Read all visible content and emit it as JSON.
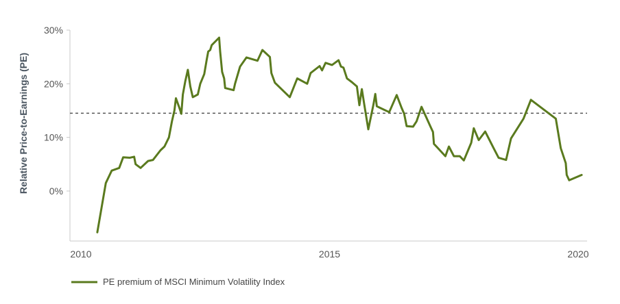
{
  "chart_data": {
    "type": "line",
    "title": "",
    "xlabel": "",
    "ylabel": "Relative Price-to-Earnings (PE)",
    "xlim": [
      2010,
      2020
    ],
    "ylim": [
      -10,
      30
    ],
    "x_ticks": [
      {
        "value": 2010,
        "label": "2010"
      },
      {
        "value": 2015,
        "label": "2015"
      },
      {
        "value": 2020,
        "label": "2020"
      }
    ],
    "y_ticks": [
      {
        "value": 30,
        "label": "30%"
      },
      {
        "value": 20,
        "label": "20%"
      },
      {
        "value": 10,
        "label": "10%"
      },
      {
        "value": 0,
        "label": "0%"
      }
    ],
    "grid": false,
    "legend_position": "bottom-left",
    "reference_line": {
      "y": 14.5,
      "style": "dashed",
      "color": "#555555"
    },
    "series": [
      {
        "name": "PE premium of MSCI Minimum Volatility Index",
        "color": "#5a7a1e",
        "points": [
          [
            2010.33,
            -7.7
          ],
          [
            2010.5,
            1.5
          ],
          [
            2010.62,
            3.8
          ],
          [
            2010.77,
            4.3
          ],
          [
            2010.85,
            6.3
          ],
          [
            2010.98,
            6.2
          ],
          [
            2011.07,
            6.4
          ],
          [
            2011.1,
            5.0
          ],
          [
            2011.2,
            4.3
          ],
          [
            2011.35,
            5.6
          ],
          [
            2011.45,
            5.8
          ],
          [
            2011.6,
            7.6
          ],
          [
            2011.68,
            8.3
          ],
          [
            2011.77,
            10.0
          ],
          [
            2011.83,
            13.0
          ],
          [
            2011.88,
            15.0
          ],
          [
            2011.91,
            17.3
          ],
          [
            2011.98,
            15.5
          ],
          [
            2012.02,
            14.4
          ],
          [
            2012.05,
            18.0
          ],
          [
            2012.1,
            20.5
          ],
          [
            2012.15,
            22.6
          ],
          [
            2012.2,
            19.5
          ],
          [
            2012.25,
            17.5
          ],
          [
            2012.35,
            18.0
          ],
          [
            2012.4,
            20.0
          ],
          [
            2012.48,
            21.8
          ],
          [
            2012.53,
            24.5
          ],
          [
            2012.56,
            26.0
          ],
          [
            2012.6,
            26.3
          ],
          [
            2012.63,
            27.2
          ],
          [
            2012.78,
            28.6
          ],
          [
            2012.8,
            26.0
          ],
          [
            2012.84,
            22.2
          ],
          [
            2012.88,
            21.0
          ],
          [
            2012.9,
            19.2
          ],
          [
            2013.07,
            18.8
          ],
          [
            2013.1,
            20.0
          ],
          [
            2013.2,
            23.2
          ],
          [
            2013.33,
            24.9
          ],
          [
            2013.55,
            24.3
          ],
          [
            2013.65,
            26.3
          ],
          [
            2013.8,
            25.0
          ],
          [
            2013.83,
            22.0
          ],
          [
            2013.9,
            20.2
          ],
          [
            2014.2,
            17.5
          ],
          [
            2014.35,
            21.0
          ],
          [
            2014.55,
            20.0
          ],
          [
            2014.62,
            22.0
          ],
          [
            2014.8,
            23.3
          ],
          [
            2014.85,
            22.5
          ],
          [
            2014.92,
            23.9
          ],
          [
            2015.05,
            23.5
          ],
          [
            2015.18,
            24.4
          ],
          [
            2015.23,
            23.2
          ],
          [
            2015.28,
            23.0
          ],
          [
            2015.35,
            21.0
          ],
          [
            2015.45,
            20.3
          ],
          [
            2015.55,
            19.5
          ],
          [
            2015.6,
            16.0
          ],
          [
            2015.65,
            19.0
          ],
          [
            2015.7,
            16.0
          ],
          [
            2015.78,
            11.5
          ],
          [
            2015.88,
            16.0
          ],
          [
            2015.92,
            18.1
          ],
          [
            2015.95,
            15.8
          ],
          [
            2016.02,
            15.5
          ],
          [
            2016.2,
            14.7
          ],
          [
            2016.35,
            17.9
          ],
          [
            2016.45,
            15.5
          ],
          [
            2016.5,
            14.4
          ],
          [
            2016.55,
            12.1
          ],
          [
            2016.68,
            12.0
          ],
          [
            2016.75,
            13.0
          ],
          [
            2016.85,
            15.7
          ],
          [
            2017.03,
            12.0
          ],
          [
            2017.08,
            11.0
          ],
          [
            2017.1,
            8.8
          ],
          [
            2017.33,
            6.5
          ],
          [
            2017.4,
            8.3
          ],
          [
            2017.5,
            6.5
          ],
          [
            2017.62,
            6.5
          ],
          [
            2017.7,
            5.7
          ],
          [
            2017.85,
            9.0
          ],
          [
            2017.9,
            11.7
          ],
          [
            2018.0,
            9.5
          ],
          [
            2018.13,
            11.1
          ],
          [
            2018.3,
            8.0
          ],
          [
            2018.4,
            6.2
          ],
          [
            2018.55,
            5.8
          ],
          [
            2018.65,
            9.8
          ],
          [
            2018.9,
            13.5
          ],
          [
            2019.05,
            17.0
          ],
          [
            2019.55,
            13.5
          ],
          [
            2019.65,
            8.0
          ],
          [
            2019.75,
            5.2
          ],
          [
            2019.77,
            3.0
          ],
          [
            2019.82,
            2.0
          ],
          [
            2020.07,
            3.0
          ]
        ]
      }
    ]
  }
}
